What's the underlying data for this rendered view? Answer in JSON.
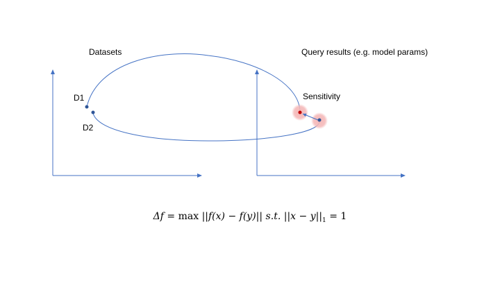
{
  "labels": {
    "datasets": "Datasets",
    "query_results": "Query results (e.g. model params)",
    "sensitivity": "Sensitivity",
    "d1": "D1",
    "d2": "D2"
  },
  "formula": {
    "delta_f": "Δf",
    "equals": " = max ",
    "norm_open": "||",
    "fx": "f(x)",
    "minus": " − ",
    "fy": "f(y)",
    "norm_close": "||",
    "st": "  s.t. ",
    "bar_open": "|",
    "inner_open": "|",
    "xy": "x − y",
    "inner_close": "|",
    "bar_close": "|",
    "sub": "1",
    "rhs": " = 1"
  },
  "colors": {
    "line": "#4472c4",
    "point": "#2e5597",
    "highlight": "#f4b6b6",
    "center_point": "#c00000"
  }
}
